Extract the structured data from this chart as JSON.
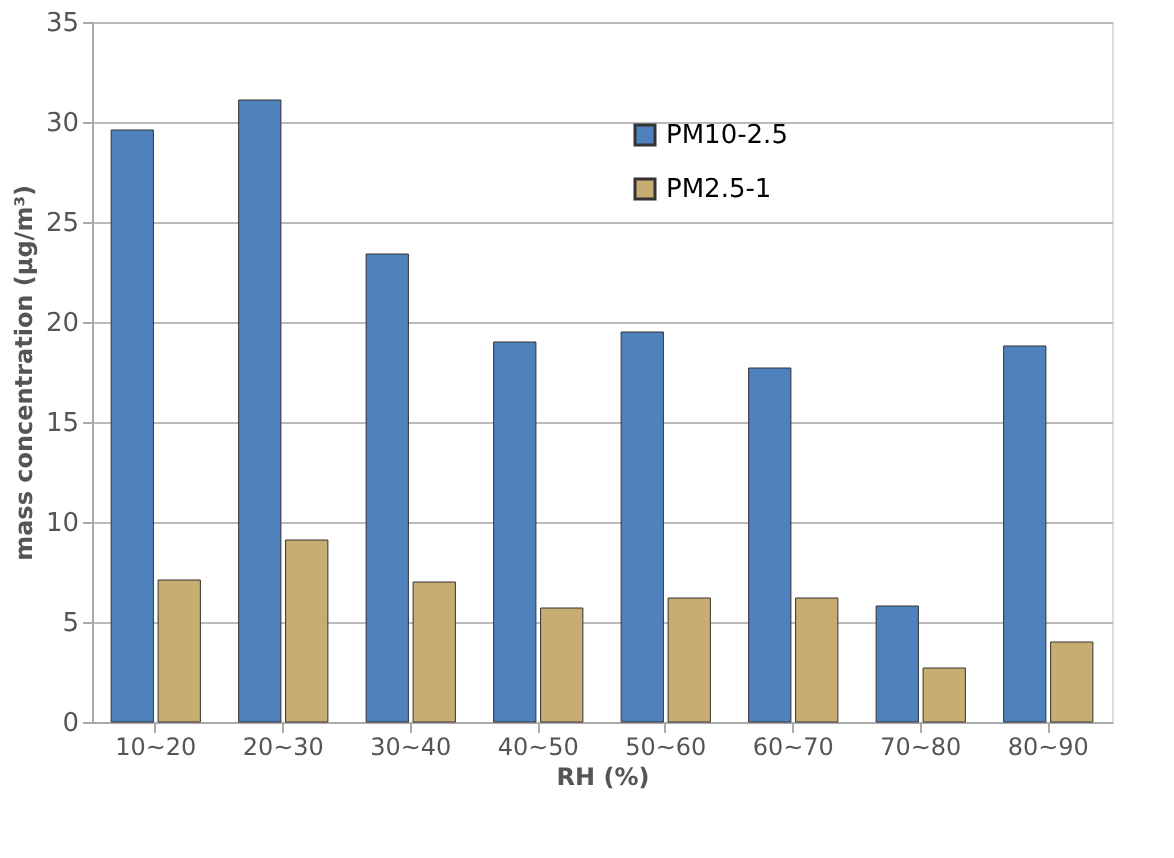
{
  "chart_data": {
    "type": "bar",
    "xlabel": "RH (%)",
    "ylabel": "mass concentration (μg/m³)",
    "categories": [
      "10~20",
      "20~30",
      "30~40",
      "40~50",
      "50~60",
      "60~70",
      "70~80",
      "80~90"
    ],
    "series": [
      {
        "name": "PM10-2.5",
        "color": "#4f81bd",
        "values": [
          29.6,
          31.1,
          23.4,
          19.0,
          19.5,
          17.7,
          5.8,
          18.8
        ]
      },
      {
        "name": "PM2.5-1",
        "color": "#c8ad72",
        "values": [
          7.1,
          9.1,
          7.0,
          5.7,
          6.2,
          6.2,
          2.7,
          4.0
        ]
      }
    ],
    "ylim": [
      0,
      35
    ],
    "yticks": [
      0,
      5,
      10,
      15,
      20,
      25,
      30,
      35
    ],
    "grid": "y",
    "legend": "top right"
  }
}
